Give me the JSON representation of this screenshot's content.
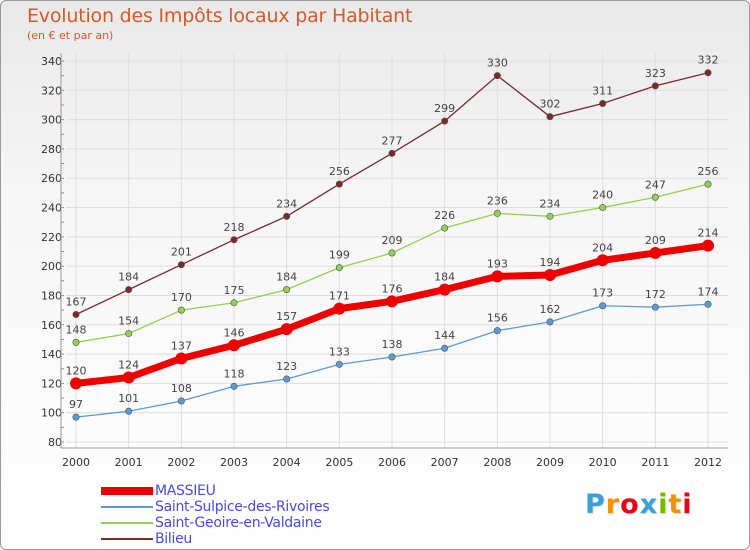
{
  "header": {
    "title": "Evolution des Impôts locaux par Habitant",
    "subtitle": "(en € et par an)"
  },
  "logo": {
    "text": "Proxiti",
    "letters": [
      "P",
      "r",
      "o",
      "x",
      "i",
      "t",
      "i"
    ],
    "colors": [
      "#3aa0dc",
      "#f39200",
      "#e30613",
      "#3aa0dc",
      "#7ab800",
      "#f39200",
      "#e30613"
    ]
  },
  "chart_data": {
    "type": "line",
    "title": "Evolution des Impôts locaux par Habitant",
    "subtitle": "(en € et par an)",
    "xlabel": "",
    "ylabel": "",
    "categories": [
      "2000",
      "2001",
      "2002",
      "2003",
      "2004",
      "2005",
      "2006",
      "2007",
      "2008",
      "2009",
      "2010",
      "2011",
      "2012"
    ],
    "ylim": [
      80,
      340
    ],
    "yticks": [
      80,
      100,
      120,
      140,
      160,
      180,
      200,
      220,
      240,
      260,
      280,
      300,
      320,
      340
    ],
    "grid": true,
    "legend_position": "bottom-left",
    "series": [
      {
        "name": "MASSIEU",
        "color": "#ee0000",
        "values": [
          120,
          124,
          137,
          146,
          157,
          171,
          176,
          184,
          193,
          194,
          204,
          209,
          214
        ],
        "highlight": true
      },
      {
        "name": "Saint-Sulpice-des-Rivoires",
        "color": "#5b9bd5",
        "values": [
          97,
          101,
          108,
          118,
          123,
          133,
          138,
          144,
          156,
          162,
          173,
          172,
          174
        ],
        "highlight": false
      },
      {
        "name": "Saint-Geoire-en-Valdaine",
        "color": "#92d050",
        "values": [
          148,
          154,
          170,
          175,
          184,
          199,
          209,
          226,
          236,
          234,
          240,
          247,
          256
        ],
        "highlight": false
      },
      {
        "name": "Bilieu",
        "color": "#7b2a2a",
        "values": [
          167,
          184,
          201,
          218,
          234,
          256,
          277,
          299,
          330,
          302,
          311,
          323,
          332
        ],
        "highlight": false
      }
    ]
  }
}
